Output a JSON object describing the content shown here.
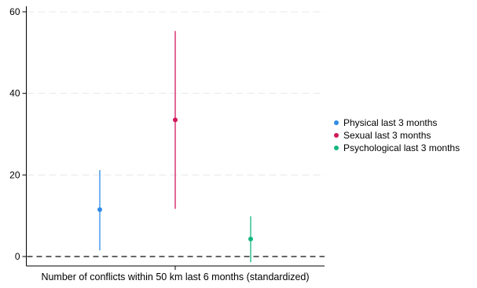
{
  "chart_data": {
    "type": "scatter",
    "subtype": "coefficient plot with confidence intervals",
    "title": "",
    "xlabel": "Number of conflicts within 50 km last 6 months (standardized)",
    "ylabel": "",
    "ylim": [
      -2,
      62
    ],
    "yticks": [
      0,
      20,
      40,
      60
    ],
    "ytick_labels": [
      "0",
      "20",
      "40",
      "60"
    ],
    "grid": "horizontal dashed",
    "reference_line": {
      "y": 0,
      "style": "dashed"
    },
    "legend_position": "right",
    "series": [
      {
        "name": "Physical last 3 months",
        "estimate": 11.5,
        "ci_low": 1.5,
        "ci_high": 21.2,
        "color": "#2f8be6"
      },
      {
        "name": "Sexual last 3 months",
        "estimate": 33.5,
        "ci_low": 11.7,
        "ci_high": 55.3,
        "color": "#d1185c"
      },
      {
        "name": "Psychological last 3 months",
        "estimate": 4.3,
        "ci_low": -1.4,
        "ci_high": 9.9,
        "color": "#13b57f"
      }
    ]
  }
}
